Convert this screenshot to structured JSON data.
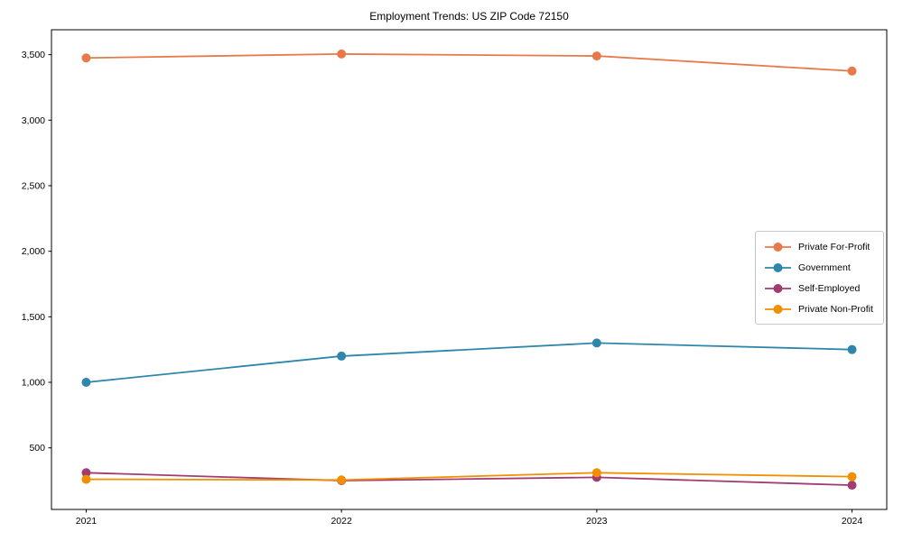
{
  "figure": {
    "background": "#ffffff",
    "spine_color": "#000000",
    "text_color": "#000000"
  },
  "chart_data": {
    "type": "line",
    "title": "Employment Trends: US ZIP Code 72150",
    "xlabel": "",
    "ylabel": "",
    "grid": false,
    "legend_position": "center-right",
    "marker": "circle",
    "x": [
      2021,
      2022,
      2023,
      2024
    ],
    "x_tick_labels": [
      "2021",
      "2022",
      "2023",
      "2024"
    ],
    "y_ticks": [
      500,
      1000,
      1500,
      2000,
      2500,
      3000,
      3500
    ],
    "y_tick_labels": [
      "500",
      "1,000",
      "1,500",
      "2,000",
      "2,500",
      "3,000",
      "3,500"
    ],
    "xlim": [
      2020.864,
      2024.136
    ],
    "ylim": [
      30,
      3690
    ],
    "series": [
      {
        "name": "Private For-Profit",
        "color": "#E8794B",
        "values": [
          3475,
          3505,
          3490,
          3375
        ]
      },
      {
        "name": "Government",
        "color": "#2E86AB",
        "values": [
          1000,
          1200,
          1300,
          1250
        ]
      },
      {
        "name": "Self-Employed",
        "color": "#A23B72",
        "values": [
          310,
          250,
          275,
          215
        ]
      },
      {
        "name": "Private Non-Profit",
        "color": "#F18F01",
        "values": [
          260,
          255,
          310,
          280
        ]
      }
    ]
  }
}
